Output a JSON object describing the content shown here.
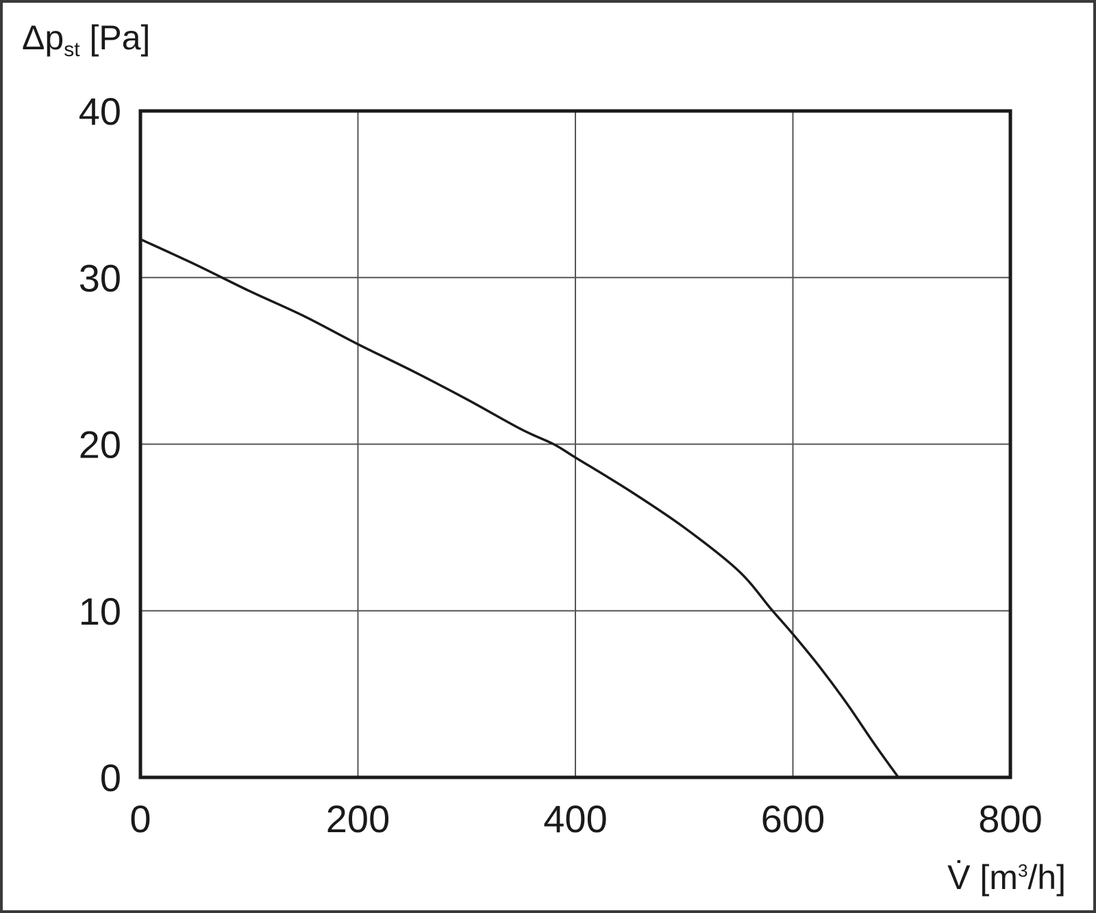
{
  "chart_data": {
    "type": "line",
    "title": "",
    "ylabel": {
      "prefix": "Δp",
      "subscript": "st",
      "unit": " [Pa]"
    },
    "xlabel": {
      "symbol": "V̇",
      "unit_start": " [m",
      "superscript": "3",
      "unit_end": "/h]"
    },
    "xlim": [
      0,
      800
    ],
    "ylim": [
      0,
      40
    ],
    "x_ticks": [
      0,
      200,
      400,
      600,
      800
    ],
    "y_ticks": [
      0,
      10,
      20,
      30,
      40
    ],
    "x_tick_labels": [
      "0",
      "200",
      "400",
      "600",
      "800"
    ],
    "y_tick_labels": [
      "0",
      "10",
      "20",
      "30",
      "40"
    ],
    "grid": true,
    "legend": "none",
    "series": [
      {
        "color": "#1a1a1a",
        "x": [
          0,
          50,
          100,
          150,
          200,
          250,
          300,
          350,
          380,
          400,
          450,
          500,
          550,
          580,
          600,
          625,
          650,
          675,
          697
        ],
        "y": [
          32.3,
          30.8,
          29.2,
          27.7,
          26.0,
          24.4,
          22.7,
          20.9,
          20.0,
          19.2,
          17.2,
          15.0,
          12.4,
          10.1,
          8.6,
          6.6,
          4.4,
          2.0,
          0
        ]
      }
    ]
  }
}
